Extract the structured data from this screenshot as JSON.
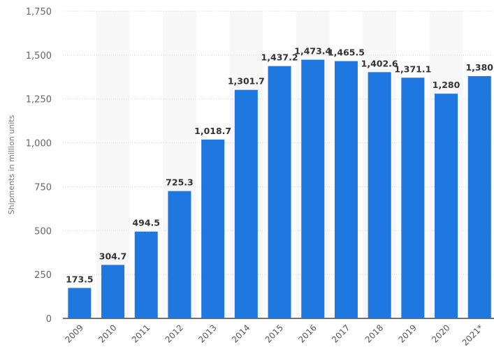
{
  "chart_data": {
    "type": "bar",
    "title": "",
    "xlabel": "",
    "ylabel": "Shipments in million units",
    "categories": [
      "2009",
      "2010",
      "2011",
      "2012",
      "2013",
      "2014",
      "2015",
      "2016",
      "2017",
      "2018",
      "2019",
      "2020",
      "2021*"
    ],
    "values": [
      173.5,
      304.7,
      494.5,
      725.3,
      1018.7,
      1301.7,
      1437.2,
      1473.4,
      1465.5,
      1402.6,
      1371.1,
      1280,
      1380
    ],
    "data_labels": [
      "173.5",
      "304.7",
      "494.5",
      "725.3",
      "1,018.7",
      "1,301.7",
      "1,437.2",
      "1,473.4",
      "1,465.5",
      "1,402.6",
      "1,371.1",
      "1,280",
      "1,380"
    ],
    "ylim": [
      0,
      1750
    ],
    "yticks": [
      0,
      250,
      500,
      750,
      1000,
      1250,
      1500,
      1750
    ],
    "ytick_labels": [
      "0",
      "250",
      "500",
      "750",
      "1,000",
      "1,250",
      "1,500",
      "1,750"
    ],
    "grid": true,
    "legend": "none",
    "colors": {
      "bar": "#1f77e0",
      "band": "#f7f7f7",
      "grid": "#d8d8d8",
      "axis": "#444444"
    }
  }
}
